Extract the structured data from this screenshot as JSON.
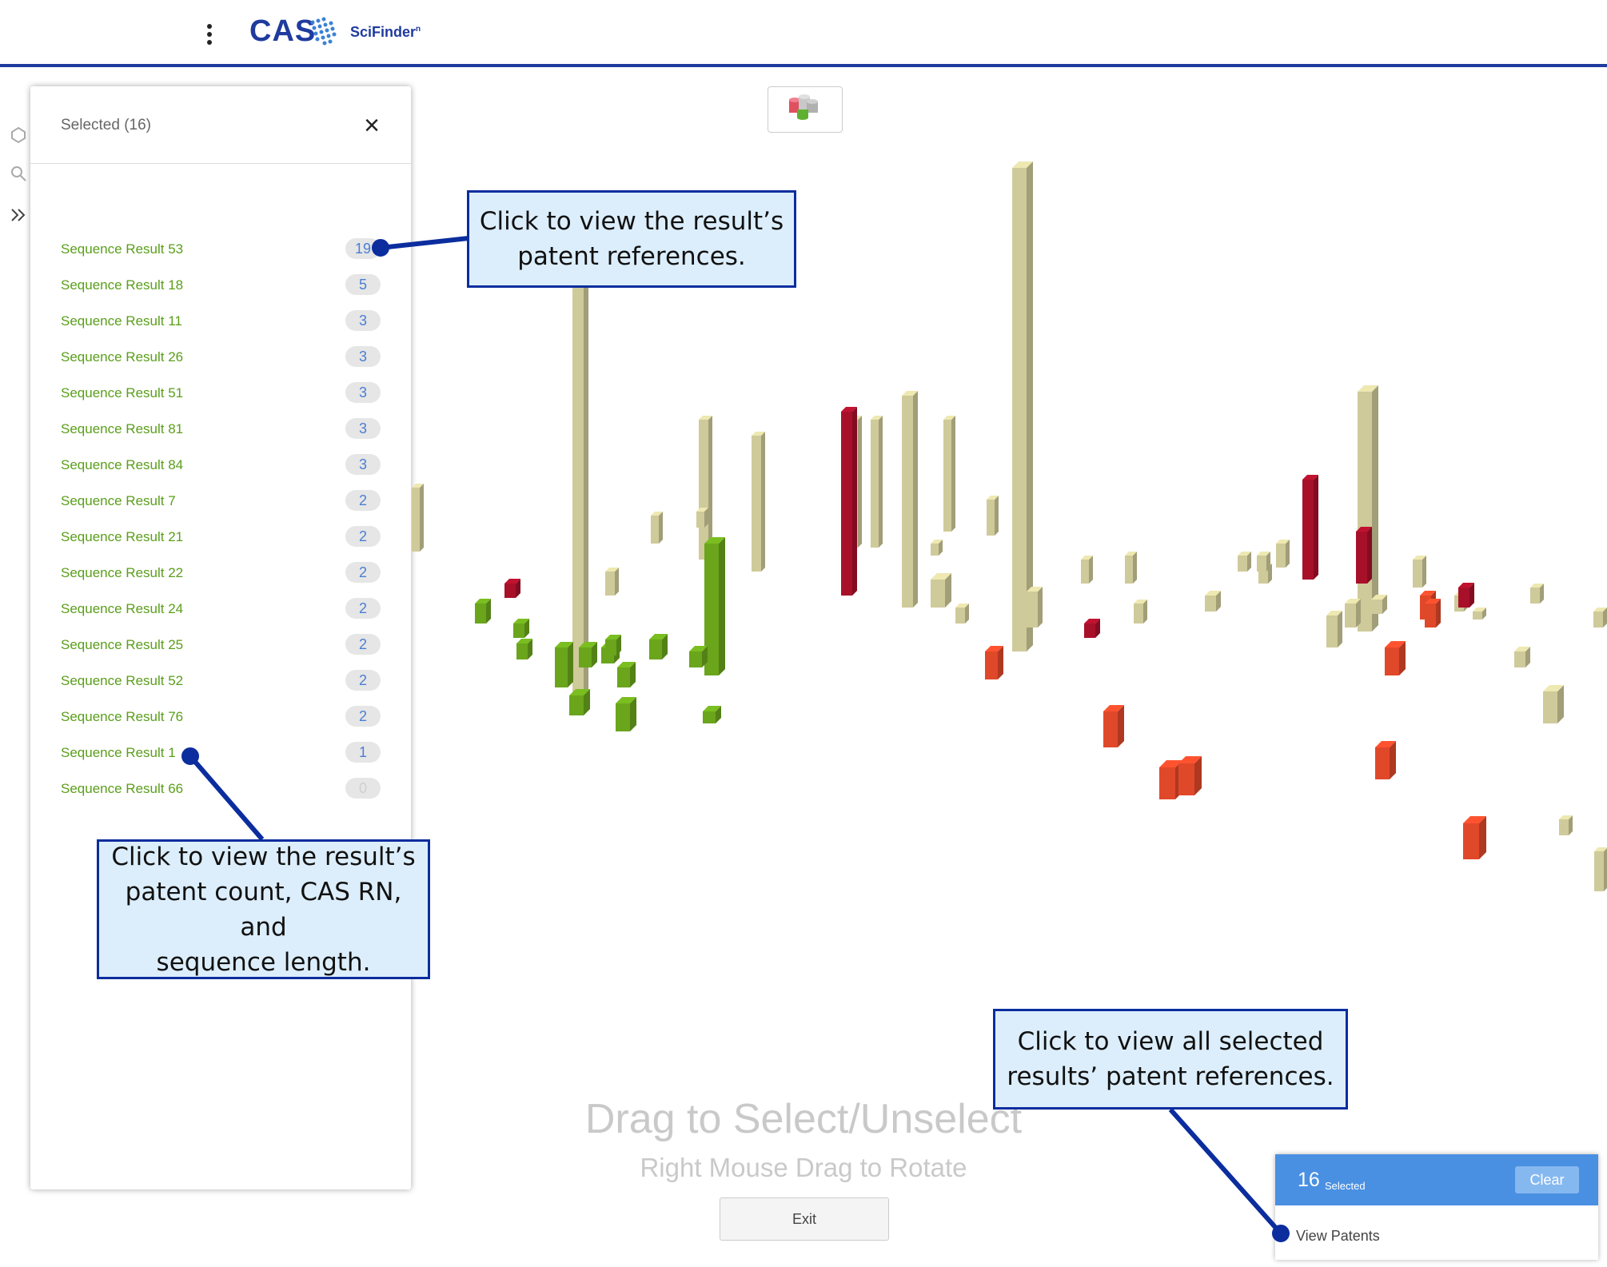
{
  "app": {
    "brand": "CAS",
    "product": "SciFinder",
    "product_suffix": "n"
  },
  "panel": {
    "title": "Selected (16)",
    "close_glyph": "×",
    "results": [
      {
        "name": "Sequence Result 53",
        "count": "19"
      },
      {
        "name": "Sequence Result 18",
        "count": "5"
      },
      {
        "name": "Sequence Result 11",
        "count": "3"
      },
      {
        "name": "Sequence Result 26",
        "count": "3"
      },
      {
        "name": "Sequence Result 51",
        "count": "3"
      },
      {
        "name": "Sequence Result 81",
        "count": "3"
      },
      {
        "name": "Sequence Result 84",
        "count": "3"
      },
      {
        "name": "Sequence Result 7",
        "count": "2"
      },
      {
        "name": "Sequence Result 21",
        "count": "2"
      },
      {
        "name": "Sequence Result 22",
        "count": "2"
      },
      {
        "name": "Sequence Result 24",
        "count": "2"
      },
      {
        "name": "Sequence Result 25",
        "count": "2"
      },
      {
        "name": "Sequence Result 52",
        "count": "2"
      },
      {
        "name": "Sequence Result 76",
        "count": "2"
      },
      {
        "name": "Sequence Result 1",
        "count": "1"
      },
      {
        "name": "Sequence Result 66",
        "count": "0"
      }
    ]
  },
  "viewer": {
    "hint_main": "Drag to Select/Unselect",
    "hint_sub": "Right Mouse Drag to Rotate",
    "exit_label": "Exit"
  },
  "selection": {
    "count": "16",
    "label": "Selected",
    "clear_label": "Clear",
    "view_label": "View Patents"
  },
  "callouts": {
    "patent_refs": [
      "Click to view the result’s",
      "patent references."
    ],
    "result_details": [
      "Click to view the result’s",
      "patent count, CAS RN, and",
      "sequence length."
    ],
    "all_selected": [
      "Click to view all selected",
      "results’ patent references."
    ]
  },
  "colors": {
    "brand_blue": "#1f3b9e",
    "result_green": "#5a9e1a",
    "count_blue": "#4a7fd4",
    "selection_blue": "#4a90e2",
    "callout_fill": "#dceefb",
    "callout_border": "#0b2d9e",
    "bar_tan": "#cfca9a",
    "bar_green": "#6aa51c",
    "bar_red": "#a8102a",
    "bar_orange": "#e0482a"
  },
  "icons": {
    "menu": "kebab-menu-icon",
    "structure": "structure-icon",
    "search": "search-icon",
    "expand": "double-chevron-right-icon",
    "cylinders": "cylinder-stack-icon"
  }
}
